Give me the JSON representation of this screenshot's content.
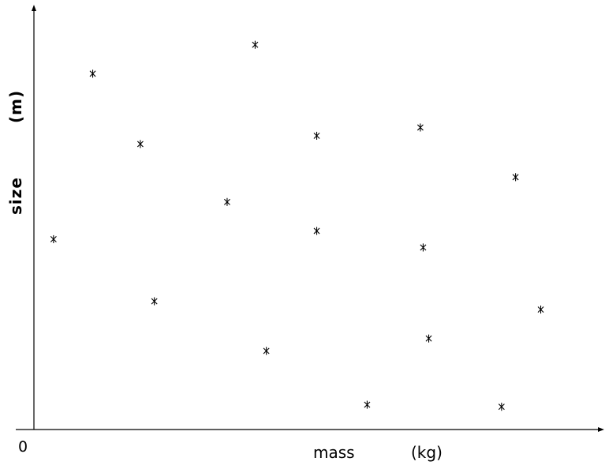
{
  "chart_data": {
    "type": "scatter",
    "title": "",
    "xlabel": "mass",
    "xunit": "(kg)",
    "ylabel": "size",
    "yunit": "(m)",
    "origin_label": "0",
    "xlim": [
      0,
      100
    ],
    "ylim": [
      0,
      100
    ],
    "grid": false,
    "marker": "asterisk",
    "series": [
      {
        "points": [
          {
            "x": 3.5,
            "y": 46
          },
          {
            "x": 10.5,
            "y": 86
          },
          {
            "x": 19,
            "y": 69
          },
          {
            "x": 21.5,
            "y": 31
          },
          {
            "x": 34.5,
            "y": 55
          },
          {
            "x": 39.5,
            "y": 93
          },
          {
            "x": 41.5,
            "y": 19
          },
          {
            "x": 50.5,
            "y": 71
          },
          {
            "x": 50.5,
            "y": 48
          },
          {
            "x": 59.5,
            "y": 6
          },
          {
            "x": 69,
            "y": 73
          },
          {
            "x": 69.5,
            "y": 44
          },
          {
            "x": 70.5,
            "y": 22
          },
          {
            "x": 83.5,
            "y": 5.5
          },
          {
            "x": 86,
            "y": 61
          },
          {
            "x": 90.5,
            "y": 29
          }
        ]
      }
    ]
  }
}
